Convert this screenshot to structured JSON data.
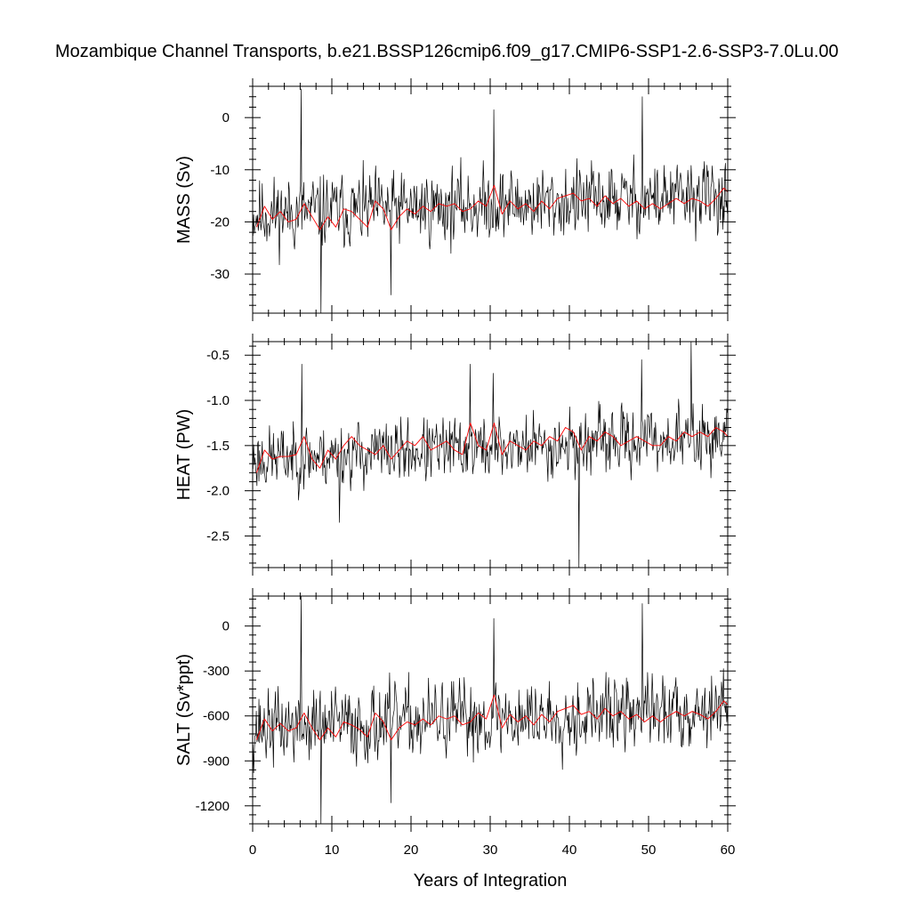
{
  "title": "Mozambique Channel Transports, b.e21.BSSP126cmip6.f09_g17.CMIP6-SSP1-2.6-SSP3-7.0Lu.00",
  "chart_data": [
    {
      "type": "line",
      "ylabel": "MASS (Sv)",
      "xlabel": "",
      "xlim": [
        0,
        60
      ],
      "ylim": [
        -37.5,
        6
      ],
      "yticks": [
        0,
        -10,
        -20,
        -30
      ],
      "ytick_labels": [
        "0",
        "-10",
        "-20",
        "-30"
      ],
      "xticks": [
        0,
        10,
        20,
        30,
        40,
        50,
        60
      ],
      "series": [
        {
          "color": "#000000",
          "kind": "monthly",
          "base": -18.5,
          "trend": 3.5,
          "amp": 5.5,
          "seed": 11,
          "spikes": [
            [
              6.1,
              5.5
            ],
            [
              8.6,
              -37.5
            ],
            [
              30.4,
              1.5
            ],
            [
              49.2,
              4.0
            ],
            [
              17.4,
              -34
            ]
          ]
        },
        {
          "color": "#ff0000",
          "kind": "annual",
          "values": [
            -21.0,
            -17.0,
            -19.5,
            -18.0,
            -20.0,
            -19.5,
            -16.5,
            -19.0,
            -21.5,
            -19.0,
            -21.0,
            -17.5,
            -18.0,
            -19.5,
            -21.0,
            -16.0,
            -17.5,
            -21.5,
            -19.0,
            -17.5,
            -18.5,
            -17.0,
            -18.0,
            -16.5,
            -17.0,
            -16.5,
            -18.0,
            -17.5,
            -16.0,
            -17.0,
            -13.0,
            -18.5,
            -16.0,
            -17.5,
            -16.5,
            -18.0,
            -16.0,
            -17.5,
            -15.5,
            -15.0,
            -14.5,
            -16.0,
            -15.5,
            -17.0,
            -15.0,
            -16.5,
            -15.5,
            -17.0,
            -16.0,
            -17.5,
            -16.5,
            -17.5,
            -16.5,
            -15.5,
            -16.5,
            -15.5,
            -16.0,
            -17.0,
            -15.5,
            -13.5,
            -15.0
          ]
        }
      ]
    },
    {
      "type": "line",
      "ylabel": "HEAT (PW)",
      "xlabel": "",
      "xlim": [
        0,
        60
      ],
      "ylim": [
        -2.85,
        -0.35
      ],
      "yticks": [
        -0.5,
        -1.0,
        -1.5,
        -2.0,
        -2.5
      ],
      "ytick_labels": [
        "-0.5",
        "-1.0",
        "-1.5",
        "-2.0",
        "-2.5"
      ],
      "xticks": [
        0,
        10,
        20,
        30,
        40,
        50,
        60
      ],
      "series": [
        {
          "color": "#000000",
          "kind": "monthly",
          "base": -1.65,
          "trend": 0.25,
          "amp": 0.28,
          "seed": 23,
          "spikes": [
            [
              6.2,
              -0.6
            ],
            [
              27.4,
              -0.6
            ],
            [
              30.3,
              -0.7
            ],
            [
              41.2,
              -2.85
            ],
            [
              49.1,
              -0.55
            ],
            [
              55.3,
              -0.35
            ],
            [
              10.9,
              -2.35
            ]
          ]
        },
        {
          "color": "#ff0000",
          "kind": "annual",
          "values": [
            -1.8,
            -1.55,
            -1.65,
            -1.62,
            -1.62,
            -1.6,
            -1.4,
            -1.65,
            -1.75,
            -1.55,
            -1.65,
            -1.5,
            -1.4,
            -1.5,
            -1.55,
            -1.6,
            -1.5,
            -1.65,
            -1.55,
            -1.45,
            -1.5,
            -1.4,
            -1.55,
            -1.5,
            -1.45,
            -1.55,
            -1.6,
            -1.25,
            -1.5,
            -1.55,
            -1.25,
            -1.6,
            -1.45,
            -1.5,
            -1.55,
            -1.45,
            -1.5,
            -1.4,
            -1.45,
            -1.3,
            -1.35,
            -1.55,
            -1.4,
            -1.45,
            -1.35,
            -1.4,
            -1.5,
            -1.45,
            -1.4,
            -1.45,
            -1.5,
            -1.5,
            -1.4,
            -1.45,
            -1.35,
            -1.4,
            -1.35,
            -1.4,
            -1.3,
            -1.35,
            -1.45
          ]
        }
      ]
    },
    {
      "type": "line",
      "ylabel": "SALT (Sv*ppt)",
      "xlabel": "Years of Integration",
      "xlim": [
        0,
        60
      ],
      "ylim": [
        -1320,
        200
      ],
      "yticks": [
        0,
        -300,
        -600,
        -900,
        -1200
      ],
      "ytick_labels": [
        "0",
        "-300",
        "-600",
        "-900",
        "-1200"
      ],
      "xticks": [
        0,
        10,
        20,
        30,
        40,
        50,
        60
      ],
      "xtick_labels": [
        "0",
        "10",
        "20",
        "30",
        "40",
        "50",
        "60"
      ],
      "series": [
        {
          "color": "#000000",
          "kind": "monthly",
          "base": -680,
          "trend": 130,
          "amp": 200,
          "seed": 37,
          "spikes": [
            [
              6.1,
              200
            ],
            [
              8.6,
              -1320
            ],
            [
              30.4,
              50
            ],
            [
              49.2,
              150
            ],
            [
              17.4,
              -1180
            ]
          ]
        },
        {
          "color": "#ff0000",
          "kind": "annual",
          "values": [
            -760,
            -620,
            -700,
            -650,
            -700,
            -680,
            -580,
            -680,
            -760,
            -680,
            -740,
            -640,
            -660,
            -690,
            -740,
            -580,
            -640,
            -760,
            -680,
            -640,
            -660,
            -620,
            -660,
            -600,
            -620,
            -600,
            -660,
            -640,
            -580,
            -620,
            -460,
            -680,
            -590,
            -640,
            -600,
            -660,
            -590,
            -640,
            -570,
            -550,
            -530,
            -590,
            -570,
            -620,
            -550,
            -600,
            -570,
            -620,
            -590,
            -640,
            -600,
            -640,
            -600,
            -570,
            -600,
            -570,
            -590,
            -620,
            -570,
            -500,
            -550
          ]
        }
      ]
    }
  ]
}
